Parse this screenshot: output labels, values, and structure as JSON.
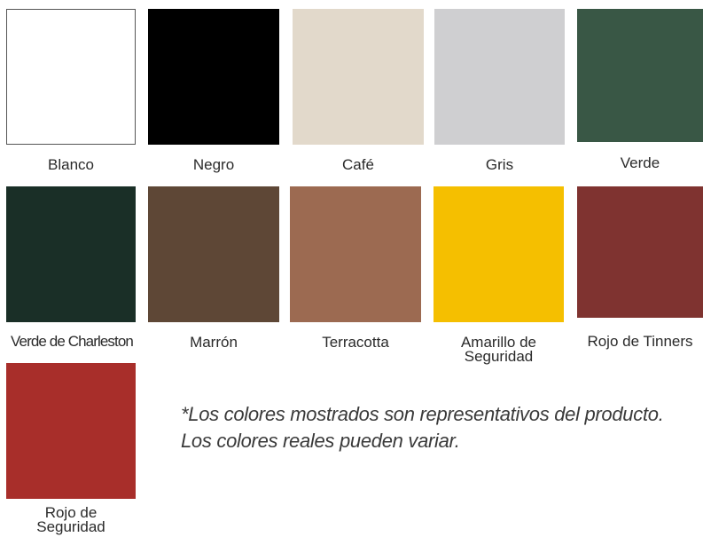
{
  "swatches": [
    {
      "label": "Blanco",
      "color": "#ffffff"
    },
    {
      "label": "Negro",
      "color": "#000000"
    },
    {
      "label": "Café",
      "color": "#e2d9cb"
    },
    {
      "label": "Gris",
      "color": "#cfcfd1"
    },
    {
      "label": "Verde",
      "color": "#395745"
    },
    {
      "label": "Verde de Charleston",
      "color": "#1a2f27"
    },
    {
      "label": "Marrón",
      "color": "#5e4736"
    },
    {
      "label": "Terracotta",
      "color": "#9c6a51"
    },
    {
      "label": "Amarillo de Seguridad",
      "color": "#f5bf00"
    },
    {
      "label": "Rojo de Tinners",
      "color": "#7f3330"
    },
    {
      "label": "Rojo de Seguridad",
      "color": "#a82e2a"
    }
  ],
  "disclaimer": {
    "line1": "*Los colores mostrados son representativos del producto.",
    "line2": "Los colores reales pueden variar."
  }
}
